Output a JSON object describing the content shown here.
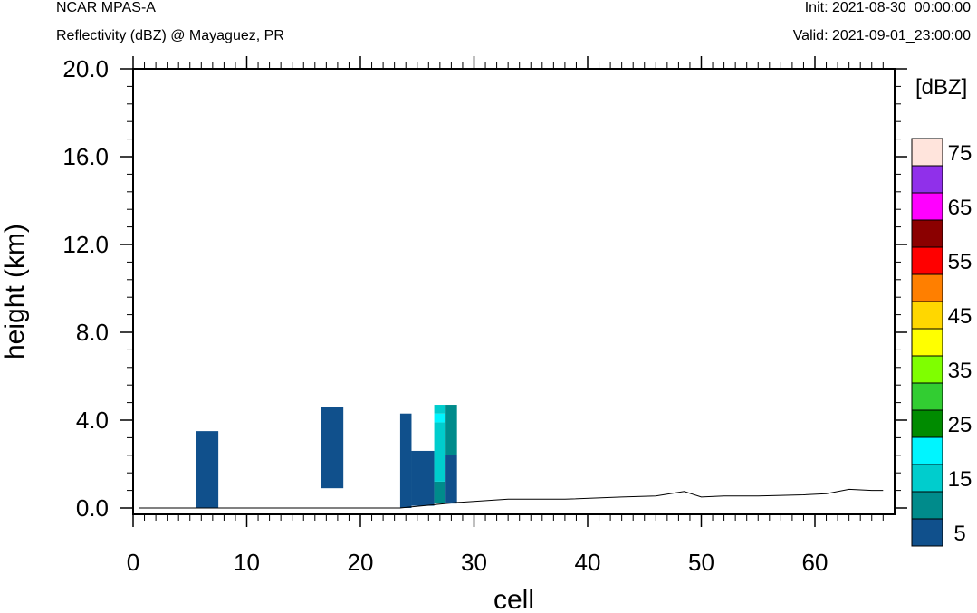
{
  "header": {
    "model": "NCAR MPAS-A",
    "field": "Reflectivity (dBZ) @ Mayaguez, PR",
    "init": "Init: 2021-08-30_00:00:00",
    "valid": "Valid: 2021-09-01_23:00:00"
  },
  "chart_data": {
    "type": "heatmap",
    "xlabel": "cell",
    "ylabel": "height (km)",
    "xlim": [
      0,
      66
    ],
    "ylim": [
      0,
      20
    ],
    "x_ticks": [
      "0",
      "10",
      "20",
      "30",
      "40",
      "50",
      "60"
    ],
    "y_ticks": [
      "0.0",
      "4.0",
      "8.0",
      "12.0",
      "16.0",
      "20.0"
    ],
    "colorbar": {
      "unit": "[dBZ]",
      "levels": [
        5,
        10,
        15,
        20,
        25,
        30,
        35,
        40,
        45,
        50,
        55,
        60,
        65,
        70,
        75
      ],
      "labels": [
        "5",
        "15",
        "25",
        "35",
        "45",
        "55",
        "65",
        "75"
      ],
      "colors": [
        "#10508c",
        "#008b8b",
        "#00cdcd",
        "#00f5ff",
        "#008b00",
        "#32cd32",
        "#7fff00",
        "#ffff00",
        "#ffd700",
        "#ff7f00",
        "#ff0000",
        "#8b0000",
        "#ff00ff",
        "#9030ea",
        "#ffe4dc"
      ]
    },
    "reflectivity_cells": [
      {
        "x": [
          5.5,
          7.5
        ],
        "y": [
          0.0,
          3.5
        ],
        "dbz": 5
      },
      {
        "x": [
          16.5,
          18.5
        ],
        "y": [
          0.9,
          4.6
        ],
        "dbz": 5
      },
      {
        "x": [
          23.5,
          24.5
        ],
        "y": [
          0.0,
          4.3
        ],
        "dbz": 5
      },
      {
        "x": [
          24.5,
          26.5
        ],
        "y": [
          0.1,
          2.6
        ],
        "dbz": 5
      },
      {
        "x": [
          26.5,
          27.5
        ],
        "y": [
          0.2,
          1.2
        ],
        "dbz": 10
      },
      {
        "x": [
          26.5,
          27.5
        ],
        "y": [
          1.2,
          3.9
        ],
        "dbz": 15
      },
      {
        "x": [
          26.5,
          27.5
        ],
        "y": [
          3.9,
          4.3
        ],
        "dbz": 20
      },
      {
        "x": [
          26.5,
          27.5
        ],
        "y": [
          4.3,
          4.7
        ],
        "dbz": 15
      },
      {
        "x": [
          27.5,
          28.5
        ],
        "y": [
          0.2,
          2.4
        ],
        "dbz": 5
      },
      {
        "x": [
          27.5,
          28.5
        ],
        "y": [
          2.4,
          4.7
        ],
        "dbz": 10
      }
    ],
    "terrain": {
      "x": [
        0.5,
        23.5,
        24.5,
        26.5,
        28.5,
        30,
        33,
        38,
        43,
        46,
        48.5,
        50,
        52,
        55,
        59,
        61,
        63,
        65,
        66
      ],
      "y": [
        0.0,
        0.0,
        0.05,
        0.15,
        0.25,
        0.3,
        0.4,
        0.4,
        0.5,
        0.55,
        0.75,
        0.5,
        0.55,
        0.55,
        0.6,
        0.65,
        0.85,
        0.8,
        0.8
      ]
    }
  }
}
